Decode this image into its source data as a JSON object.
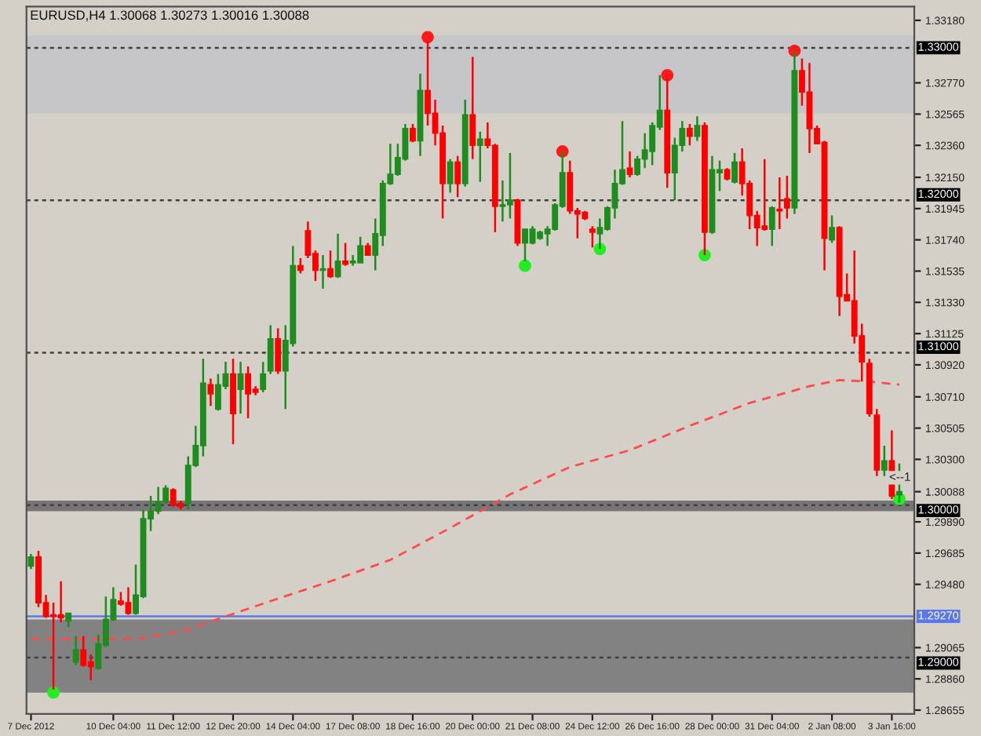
{
  "chart_data": {
    "type": "candlestick",
    "title": "EURUSD,H4 1.30068 1.30273 1.30016 1.30088",
    "categories": [
      "7 Dec 2012",
      null,
      null,
      null,
      null,
      null,
      null,
      null,
      null,
      null,
      null,
      "10 Dec 04:00",
      null,
      null,
      null,
      null,
      null,
      null,
      null,
      "11 Dec 12:00",
      null,
      null,
      null,
      null,
      null,
      null,
      null,
      "12 Dec 20:00",
      null,
      null,
      null,
      null,
      null,
      null,
      null,
      "14 Dec 04:00",
      null,
      null,
      null,
      null,
      null,
      null,
      null,
      "17 Dec 08:00",
      null,
      null,
      null,
      null,
      null,
      null,
      null,
      "18 Dec 16:00",
      null,
      null,
      null,
      null,
      null,
      null,
      null,
      "20 Dec 00:00",
      null,
      null,
      null,
      null,
      null,
      null,
      null,
      "21 Dec 08:00",
      null,
      null,
      null,
      null,
      null,
      null,
      null,
      "24 Dec 12:00",
      null,
      null,
      null,
      null,
      null,
      null,
      null,
      "26 Dec 16:00",
      null,
      null,
      null,
      null,
      null,
      null,
      null,
      "28 Dec 00:00",
      null,
      null,
      null,
      null,
      null,
      null,
      null,
      "31 Dec 04:00",
      null,
      null,
      null,
      null,
      null,
      null,
      null,
      "2 Jan 08:00",
      null,
      null,
      null,
      null,
      null,
      null,
      null,
      "3 Jan 16:00",
      null
    ],
    "ohlc": [
      [
        1.296,
        1.2968,
        1.2958,
        1.2966
      ],
      [
        1.2966,
        1.297,
        1.2933,
        1.2936
      ],
      [
        1.2936,
        1.2941,
        1.2926,
        1.2927
      ],
      [
        1.2928,
        1.2936,
        1.2879,
        1.2927
      ],
      [
        1.2928,
        1.295,
        1.2923,
        1.2926
      ],
      [
        1.2924,
        1.2929,
        1.292,
        1.2929
      ],
      [
        1.2897,
        1.2914,
        1.2895,
        1.2905
      ],
      [
        1.2905,
        1.2914,
        1.2894,
        1.2895
      ],
      [
        1.2897,
        1.2902,
        1.2885,
        1.2894
      ],
      [
        1.2893,
        1.2915,
        1.2892,
        1.2909
      ],
      [
        1.2908,
        1.294,
        1.2907,
        1.2925
      ],
      [
        1.2925,
        1.2946,
        1.2924,
        1.2938
      ],
      [
        1.2937,
        1.2943,
        1.2934,
        1.2935
      ],
      [
        1.2936,
        1.2946,
        1.2928,
        1.2929
      ],
      [
        1.2929,
        1.2961,
        1.2928,
        1.2941
      ],
      [
        1.294,
        1.2997,
        1.2939,
        1.2991
      ],
      [
        1.2991,
        1.3006,
        1.2983,
        1.2996
      ],
      [
        1.2996,
        1.3012,
        1.2994,
        1.3002
      ],
      [
        1.3002,
        1.3013,
        1.3001,
        1.3011
      ],
      [
        1.301,
        1.3011,
        1.2999,
        1.3
      ],
      [
        1.3001,
        1.3003,
        1.2997,
        1.2999
      ],
      [
        1.3001,
        1.3032,
        1.2997,
        1.3026
      ],
      [
        1.3026,
        1.3052,
        1.3025,
        1.3039
      ],
      [
        1.3039,
        1.3096,
        1.3032,
        1.308
      ],
      [
        1.3079,
        1.3083,
        1.3065,
        1.3073
      ],
      [
        1.3063,
        1.3086,
        1.3062,
        1.3079
      ],
      [
        1.3078,
        1.3094,
        1.3076,
        1.3086
      ],
      [
        1.3086,
        1.3096,
        1.304,
        1.306
      ],
      [
        1.3076,
        1.3094,
        1.306,
        1.3086
      ],
      [
        1.3086,
        1.3091,
        1.3057,
        1.3073
      ],
      [
        1.3076,
        1.3078,
        1.3072,
        1.3074
      ],
      [
        1.3076,
        1.3094,
        1.3074,
        1.3086
      ],
      [
        1.3088,
        1.3118,
        1.3086,
        1.3109
      ],
      [
        1.3109,
        1.3116,
        1.3086,
        1.3088
      ],
      [
        1.3088,
        1.3118,
        1.3063,
        1.3108
      ],
      [
        1.3106,
        1.317,
        1.3104,
        1.3157
      ],
      [
        1.3157,
        1.3162,
        1.3152,
        1.3154
      ],
      [
        1.318,
        1.3186,
        1.3162,
        1.3164
      ],
      [
        1.3165,
        1.3167,
        1.3147,
        1.3154
      ],
      [
        1.3154,
        1.3164,
        1.3142,
        1.3155
      ],
      [
        1.3155,
        1.3167,
        1.3149,
        1.315
      ],
      [
        1.315,
        1.3178,
        1.3149,
        1.316
      ],
      [
        1.316,
        1.3172,
        1.3157,
        1.3158
      ],
      [
        1.3159,
        1.3164,
        1.3157,
        1.316
      ],
      [
        1.3159,
        1.3176,
        1.3159,
        1.317
      ],
      [
        1.317,
        1.3172,
        1.3164,
        1.3164
      ],
      [
        1.3164,
        1.3188,
        1.3154,
        1.3178
      ],
      [
        1.3177,
        1.3213,
        1.317,
        1.3211
      ],
      [
        1.3211,
        1.3237,
        1.321,
        1.3217
      ],
      [
        1.3217,
        1.3237,
        1.3216,
        1.3228
      ],
      [
        1.3227,
        1.325,
        1.3226,
        1.3247
      ],
      [
        1.3247,
        1.325,
        1.3238,
        1.3239
      ],
      [
        1.3239,
        1.3283,
        1.3229,
        1.3272
      ],
      [
        1.3272,
        1.3304,
        1.3249,
        1.3257
      ],
      [
        1.3257,
        1.3266,
        1.3236,
        1.3244
      ],
      [
        1.3244,
        1.3249,
        1.3188,
        1.3211
      ],
      [
        1.3211,
        1.3227,
        1.3205,
        1.3225
      ],
      [
        1.3225,
        1.3229,
        1.3202,
        1.3211
      ],
      [
        1.3211,
        1.3266,
        1.3209,
        1.3256
      ],
      [
        1.3256,
        1.3294,
        1.3227,
        1.3236
      ],
      [
        1.3236,
        1.3245,
        1.3212,
        1.324
      ],
      [
        1.324,
        1.3251,
        1.3234,
        1.3236
      ],
      [
        1.3236,
        1.3237,
        1.3179,
        1.3196
      ],
      [
        1.3196,
        1.3213,
        1.3186,
        1.3197
      ],
      [
        1.3197,
        1.3231,
        1.3188,
        1.32
      ],
      [
        1.32,
        1.3201,
        1.317,
        1.3172
      ],
      [
        1.3172,
        1.3181,
        1.316,
        1.3181
      ],
      [
        1.3172,
        1.3183,
        1.3171,
        1.3181
      ],
      [
        1.3175,
        1.318,
        1.3174,
        1.3179
      ],
      [
        1.3178,
        1.3183,
        1.317,
        1.3181
      ],
      [
        1.3181,
        1.3198,
        1.318,
        1.3197
      ],
      [
        1.3196,
        1.3232,
        1.3195,
        1.3218
      ],
      [
        1.3218,
        1.3226,
        1.3191,
        1.3193
      ],
      [
        1.3193,
        1.3195,
        1.3175,
        1.3191
      ],
      [
        1.3192,
        1.3193,
        1.3187,
        1.3188
      ],
      [
        1.3181,
        1.3183,
        1.3169,
        1.3179
      ],
      [
        1.3178,
        1.3188,
        1.3168,
        1.3182
      ],
      [
        1.3181,
        1.3196,
        1.318,
        1.3195
      ],
      [
        1.3195,
        1.322,
        1.3188,
        1.3211
      ],
      [
        1.3211,
        1.3252,
        1.321,
        1.322
      ],
      [
        1.3221,
        1.3232,
        1.3215,
        1.3217
      ],
      [
        1.3217,
        1.3229,
        1.3216,
        1.3227
      ],
      [
        1.3227,
        1.3244,
        1.3221,
        1.3233
      ],
      [
        1.3232,
        1.3251,
        1.3223,
        1.3249
      ],
      [
        1.3248,
        1.3282,
        1.3246,
        1.3259
      ],
      [
        1.3259,
        1.328,
        1.3208,
        1.3218
      ],
      [
        1.3218,
        1.3241,
        1.32,
        1.3236
      ],
      [
        1.3236,
        1.3252,
        1.3232,
        1.3247
      ],
      [
        1.3247,
        1.325,
        1.3236,
        1.3242
      ],
      [
        1.3242,
        1.3255,
        1.3239,
        1.3249
      ],
      [
        1.3249,
        1.3251,
        1.3164,
        1.3179
      ],
      [
        1.3179,
        1.3229,
        1.3178,
        1.322
      ],
      [
        1.3218,
        1.3226,
        1.3206,
        1.322
      ],
      [
        1.322,
        1.3221,
        1.3213,
        1.3214
      ],
      [
        1.3212,
        1.3231,
        1.3211,
        1.3225
      ],
      [
        1.3225,
        1.3234,
        1.3203,
        1.3211
      ],
      [
        1.3211,
        1.3213,
        1.3181,
        1.319
      ],
      [
        1.319,
        1.3193,
        1.317,
        1.3182
      ],
      [
        1.3183,
        1.3227,
        1.318,
        1.3181
      ],
      [
        1.3181,
        1.3196,
        1.317,
        1.3195
      ],
      [
        1.3194,
        1.3215,
        1.3181,
        1.3193
      ],
      [
        1.3201,
        1.3216,
        1.3188,
        1.3195
      ],
      [
        1.3195,
        1.3298,
        1.3191,
        1.3285
      ],
      [
        1.3285,
        1.3293,
        1.3262,
        1.3271
      ],
      [
        1.3271,
        1.329,
        1.3231,
        1.3247
      ],
      [
        1.3247,
        1.3249,
        1.3237,
        1.3237
      ],
      [
        1.3238,
        1.3239,
        1.3154,
        1.3175
      ],
      [
        1.3174,
        1.319,
        1.3172,
        1.3182
      ],
      [
        1.3182,
        1.3183,
        1.3124,
        1.3137
      ],
      [
        1.3138,
        1.3152,
        1.3134,
        1.3134
      ],
      [
        1.3134,
        1.3167,
        1.3106,
        1.3111
      ],
      [
        1.3111,
        1.3119,
        1.3081,
        1.3094
      ],
      [
        1.3093,
        1.3096,
        1.3058,
        1.306
      ],
      [
        1.3059,
        1.3063,
        1.3019,
        1.3023
      ],
      [
        1.3023,
        1.3039,
        1.3019,
        1.3029
      ],
      [
        1.3029,
        1.3049,
        1.3004,
        1.3006
      ],
      [
        1.30068,
        1.30273,
        1.30016,
        1.30088
      ]
    ],
    "series": [
      {
        "type": "line",
        "color": "#ff4a4a",
        "line_style": "dashed",
        "values": [
          1.2912,
          null,
          null,
          null,
          null,
          null,
          null,
          null,
          1.2912,
          null,
          null,
          null,
          null,
          null,
          1.2912,
          null,
          null,
          null,
          null,
          null,
          1.2917,
          null,
          null,
          null,
          null,
          null,
          1.2927,
          null,
          null,
          null,
          null,
          null,
          1.2937,
          null,
          null,
          null,
          null,
          null,
          null,
          null,
          1.295,
          null,
          null,
          null,
          null,
          null,
          null,
          null,
          1.2964,
          null,
          null,
          null,
          null,
          null,
          null,
          null,
          1.2985,
          null,
          null,
          null,
          null,
          null,
          null,
          null,
          1.3007,
          null,
          null,
          null,
          null,
          null,
          null,
          null,
          1.3025,
          null,
          null,
          null,
          null,
          null,
          null,
          null,
          1.3036,
          null,
          null,
          null,
          null,
          null,
          null,
          null,
          1.3052,
          null,
          null,
          null,
          null,
          null,
          null,
          null,
          1.3067,
          null,
          null,
          null,
          null,
          null,
          null,
          null,
          1.3078,
          null,
          null,
          null,
          1.3082,
          null,
          null,
          null,
          1.3081,
          null,
          null,
          null,
          1.3079
        ]
      },
      {
        "type": "scatter",
        "color": "#ff1a1a",
        "marker": "circle",
        "values": [
          null,
          null,
          null,
          null,
          null,
          null,
          null,
          null,
          null,
          null,
          null,
          null,
          null,
          null,
          null,
          null,
          null,
          null,
          null,
          null,
          null,
          null,
          null,
          null,
          null,
          null,
          null,
          null,
          null,
          null,
          null,
          null,
          null,
          null,
          null,
          null,
          null,
          null,
          null,
          null,
          null,
          null,
          null,
          null,
          null,
          null,
          null,
          null,
          null,
          null,
          null,
          null,
          null,
          1.3307,
          null,
          null,
          null,
          null,
          null,
          null,
          null,
          null,
          null,
          null,
          null,
          null,
          null,
          null,
          null,
          null,
          null,
          1.3232,
          null,
          null,
          null,
          null,
          null,
          null,
          null,
          null,
          null,
          null,
          null,
          null,
          null,
          1.3282,
          null,
          null,
          null,
          null,
          null,
          null,
          null,
          null,
          null,
          null,
          null,
          null,
          null,
          null,
          null,
          null,
          1.3298,
          null,
          null,
          null,
          null,
          null,
          null,
          null,
          null,
          null,
          null,
          null,
          null,
          null,
          null
        ]
      },
      {
        "type": "scatter",
        "color": "#22ee22",
        "marker": "circle",
        "values": [
          null,
          null,
          null,
          1.2877,
          null,
          null,
          null,
          null,
          null,
          null,
          null,
          null,
          null,
          null,
          null,
          null,
          null,
          null,
          null,
          null,
          null,
          null,
          null,
          null,
          null,
          null,
          null,
          null,
          null,
          null,
          null,
          null,
          null,
          null,
          null,
          null,
          null,
          null,
          null,
          null,
          null,
          null,
          null,
          null,
          null,
          null,
          null,
          null,
          null,
          null,
          null,
          null,
          null,
          null,
          null,
          null,
          null,
          null,
          null,
          null,
          null,
          null,
          null,
          null,
          null,
          null,
          1.3157,
          null,
          null,
          null,
          null,
          null,
          null,
          null,
          null,
          null,
          1.3168,
          null,
          null,
          null,
          null,
          null,
          null,
          null,
          null,
          null,
          null,
          null,
          null,
          null,
          1.3164,
          null,
          null,
          null,
          null,
          null,
          null,
          null,
          null,
          null,
          null,
          null,
          null,
          null,
          null,
          null,
          null,
          null,
          null,
          null,
          null,
          null,
          null,
          null,
          null,
          null,
          1.3004
        ]
      }
    ],
    "ylim": [
      1.2863,
      1.3327
    ],
    "yticks": [
      {
        "value": 1.3318,
        "label": "1.33180"
      },
      {
        "value": 1.3277,
        "label": "1.32770"
      },
      {
        "value": 1.32565,
        "label": "1.32565"
      },
      {
        "value": 1.3236,
        "label": "1.32360"
      },
      {
        "value": 1.3215,
        "label": "1.32150"
      },
      {
        "value": 1.31945,
        "label": "1.31945"
      },
      {
        "value": 1.3174,
        "label": "1.31740"
      },
      {
        "value": 1.31535,
        "label": "1.31535"
      },
      {
        "value": 1.3133,
        "label": "1.31330"
      },
      {
        "value": 1.31125,
        "label": "1.31125"
      },
      {
        "value": 1.3092,
        "label": "1.30920"
      },
      {
        "value": 1.3071,
        "label": "1.30710"
      },
      {
        "value": 1.30505,
        "label": "1.30505"
      },
      {
        "value": 1.303,
        "label": "1.30300"
      },
      {
        "value": 1.30088,
        "label": "1.30088"
      },
      {
        "value": 1.2989,
        "label": "1.29890"
      },
      {
        "value": 1.29685,
        "label": "1.29685"
      },
      {
        "value": 1.2948,
        "label": "1.29480"
      },
      {
        "value": 1.29065,
        "label": "1.29065"
      },
      {
        "value": 1.2886,
        "label": "1.28860"
      },
      {
        "value": 1.28655,
        "label": "1.28655"
      }
    ],
    "bands": [
      {
        "axis": "y",
        "from": 1.3257,
        "to": 1.3308,
        "color": "#c6c6c8"
      },
      {
        "axis": "y",
        "from": 1.2996,
        "to": 1.3003,
        "color": "#767676"
      },
      {
        "axis": "y",
        "from": 1.2877,
        "to": 1.2925,
        "color": "#828282"
      }
    ],
    "ref_lines": [
      {
        "axis": "y",
        "value": 1.33,
        "label": "1.33000",
        "color": "#404040",
        "line_style": "dotted"
      },
      {
        "axis": "y",
        "value": 1.32,
        "label": "1.32000",
        "color": "#404040",
        "line_style": "dotted"
      },
      {
        "axis": "y",
        "value": 1.31,
        "label": "1.31000",
        "color": "#404040",
        "line_style": "dotted"
      },
      {
        "axis": "y",
        "value": 1.3,
        "label": "1.30000",
        "color": "#404040",
        "line_style": "dotted"
      },
      {
        "axis": "y",
        "value": 1.2927,
        "label": "1.29270",
        "color": "#5a78e6",
        "line_style": "solid"
      },
      {
        "axis": "y",
        "value": 1.29,
        "label": "1.29000",
        "color": "#404040",
        "line_style": "dotted"
      }
    ],
    "annotations": [
      "<--1"
    ],
    "grid": false,
    "legend": false
  }
}
